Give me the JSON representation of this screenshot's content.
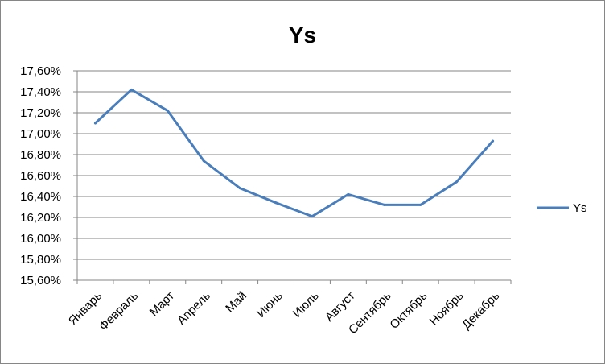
{
  "chart_data": {
    "type": "line",
    "title": "Ys",
    "xlabel": "",
    "ylabel": "",
    "categories": [
      "Январь",
      "Февраль",
      "Март",
      "Апрель",
      "Май",
      "Июнь",
      "Июль",
      "Август",
      "Сентябрь",
      "Октябрь",
      "Ноябрь",
      "Декабрь"
    ],
    "series": [
      {
        "name": "Ys",
        "color": "#4A7EBB",
        "values": [
          17.1,
          17.42,
          17.22,
          16.74,
          16.48,
          16.34,
          16.21,
          16.42,
          16.32,
          16.32,
          16.54,
          16.93
        ]
      }
    ],
    "ylim": [
      15.6,
      17.6
    ],
    "yticks": [
      "15,60%",
      "15,80%",
      "16,00%",
      "16,20%",
      "16,40%",
      "16,60%",
      "16,80%",
      "17,00%",
      "17,20%",
      "17,40%",
      "17,60%"
    ],
    "ytick_values": [
      15.6,
      15.8,
      16.0,
      16.2,
      16.4,
      16.6,
      16.8,
      17.0,
      17.2,
      17.4,
      17.6
    ],
    "grid": true,
    "legend": "right",
    "gridline_color": "#868686"
  }
}
